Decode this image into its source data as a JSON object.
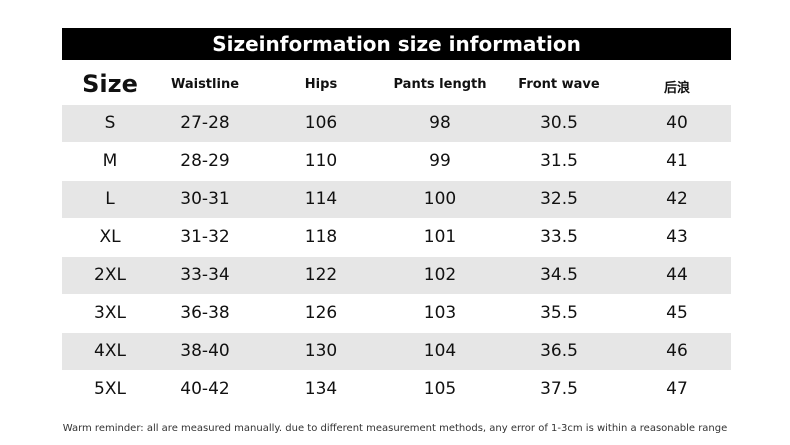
{
  "header": {
    "title": "Sizeinformation size information"
  },
  "table": {
    "columns": [
      "Size",
      "Waistline",
      "Hips",
      "Pants length",
      "Front wave",
      "后浪"
    ],
    "rows": [
      [
        "S",
        "27-28",
        "106",
        "98",
        "30.5",
        "40"
      ],
      [
        "M",
        "28-29",
        "110",
        "99",
        "31.5",
        "41"
      ],
      [
        "L",
        "30-31",
        "114",
        "100",
        "32.5",
        "42"
      ],
      [
        "XL",
        "31-32",
        "118",
        "101",
        "33.5",
        "43"
      ],
      [
        "2XL",
        "33-34",
        "122",
        "102",
        "34.5",
        "44"
      ],
      [
        "3XL",
        "36-38",
        "126",
        "103",
        "35.5",
        "45"
      ],
      [
        "4XL",
        "38-40",
        "130",
        "104",
        "36.5",
        "46"
      ],
      [
        "5XL",
        "40-42",
        "134",
        "105",
        "37.5",
        "47"
      ]
    ]
  },
  "footer": {
    "note": "Warm reminder: all are measured manually. due to different measurement methods, any error of 1-3cm is within a reasonable range"
  }
}
